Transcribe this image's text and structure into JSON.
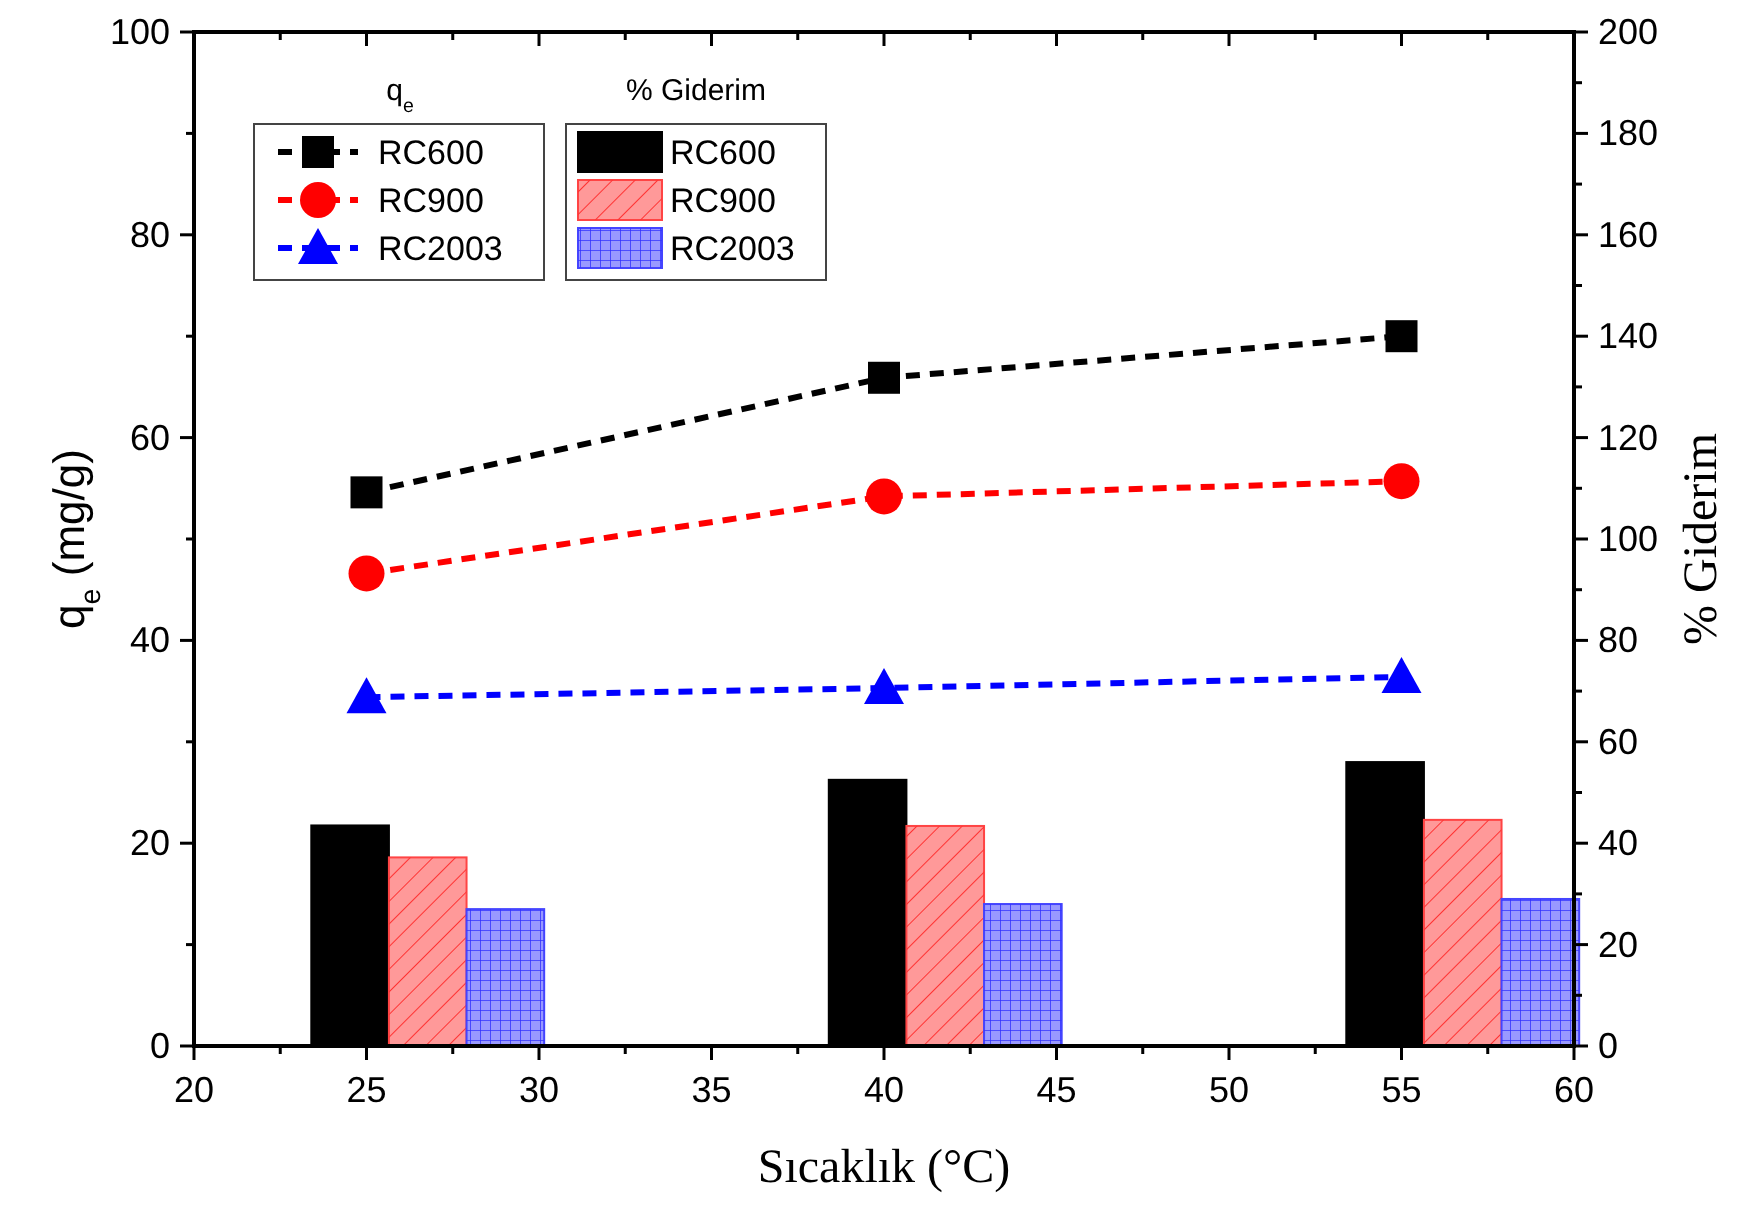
{
  "chart_data": {
    "type": "line",
    "xlabel": "Sıcaklık (°C)",
    "ylabel": "q$_{e}$ (mg/g)",
    "y2label": "% Giderim",
    "legend_title": [
      "q$_{e}$",
      "% Giderim"
    ],
    "x": [
      25,
      40,
      55
    ],
    "xlim": [
      20,
      60
    ],
    "xticks": [
      20,
      {
        "value": 22.5,
        "label": null
      },
      25,
      {
        "value": 27.5,
        "label": null
      },
      30,
      {
        "value": 32.5,
        "label": null
      },
      35,
      {
        "value": 37.5,
        "label": null
      },
      40,
      {
        "value": 42.5,
        "label": null
      },
      45,
      {
        "value": 47.5,
        "label": null
      },
      50,
      {
        "value": 52.5,
        "label": null
      },
      55,
      {
        "value": 57.5,
        "label": null
      },
      60
    ],
    "ylim": [
      0,
      100
    ],
    "yticks": [
      0,
      {
        "value": 10,
        "label": null
      },
      20,
      {
        "value": 30,
        "label": null
      },
      40,
      {
        "value": 50,
        "label": null
      },
      60,
      {
        "value": 70,
        "label": null
      },
      80,
      {
        "value": 90,
        "label": null
      },
      100
    ],
    "y2lim": [
      0,
      200
    ],
    "y2ticks": [
      0,
      {
        "value": 10,
        "label": null
      },
      20,
      {
        "value": 30,
        "label": null
      },
      40,
      {
        "value": 50,
        "label": null
      },
      60,
      {
        "value": 70,
        "label": null
      },
      80,
      {
        "value": 90,
        "label": null
      },
      100,
      {
        "value": 110,
        "label": null
      },
      120,
      {
        "value": 130,
        "label": null
      },
      140,
      {
        "value": 150,
        "label": null
      },
      160,
      {
        "value": 170,
        "label": null
      },
      180,
      {
        "value": 190,
        "label": null
      },
      200
    ],
    "grid": false,
    "legend": "top left",
    "line_style": "dashed",
    "series": [
      {
        "name": "RC600",
        "axis": "y",
        "color": "#000000",
        "marker": "square",
        "values": [
          54.6,
          65.9,
          70.0
        ]
      },
      {
        "name": "RC900",
        "axis": "y",
        "color": "#ff0000",
        "marker": "circle",
        "values": [
          46.6,
          54.2,
          55.7
        ]
      },
      {
        "name": "RC2003",
        "axis": "y",
        "color": "#0000ff",
        "marker": "triangle",
        "values": [
          34.4,
          35.3,
          36.4
        ]
      },
      {
        "name": "RC600",
        "type": "bar",
        "axis": "y2",
        "color": "#000000",
        "values": [
          43.5,
          52.5,
          56
        ]
      },
      {
        "name": "RC900",
        "type": "bar",
        "axis": "y2",
        "color": "#ff9999",
        "values": [
          37.2,
          43.4,
          44.6
        ]
      },
      {
        "name": "RC2003",
        "type": "bar",
        "axis": "y2",
        "color": "#9999ff",
        "values": [
          27,
          28,
          29
        ]
      }
    ]
  }
}
